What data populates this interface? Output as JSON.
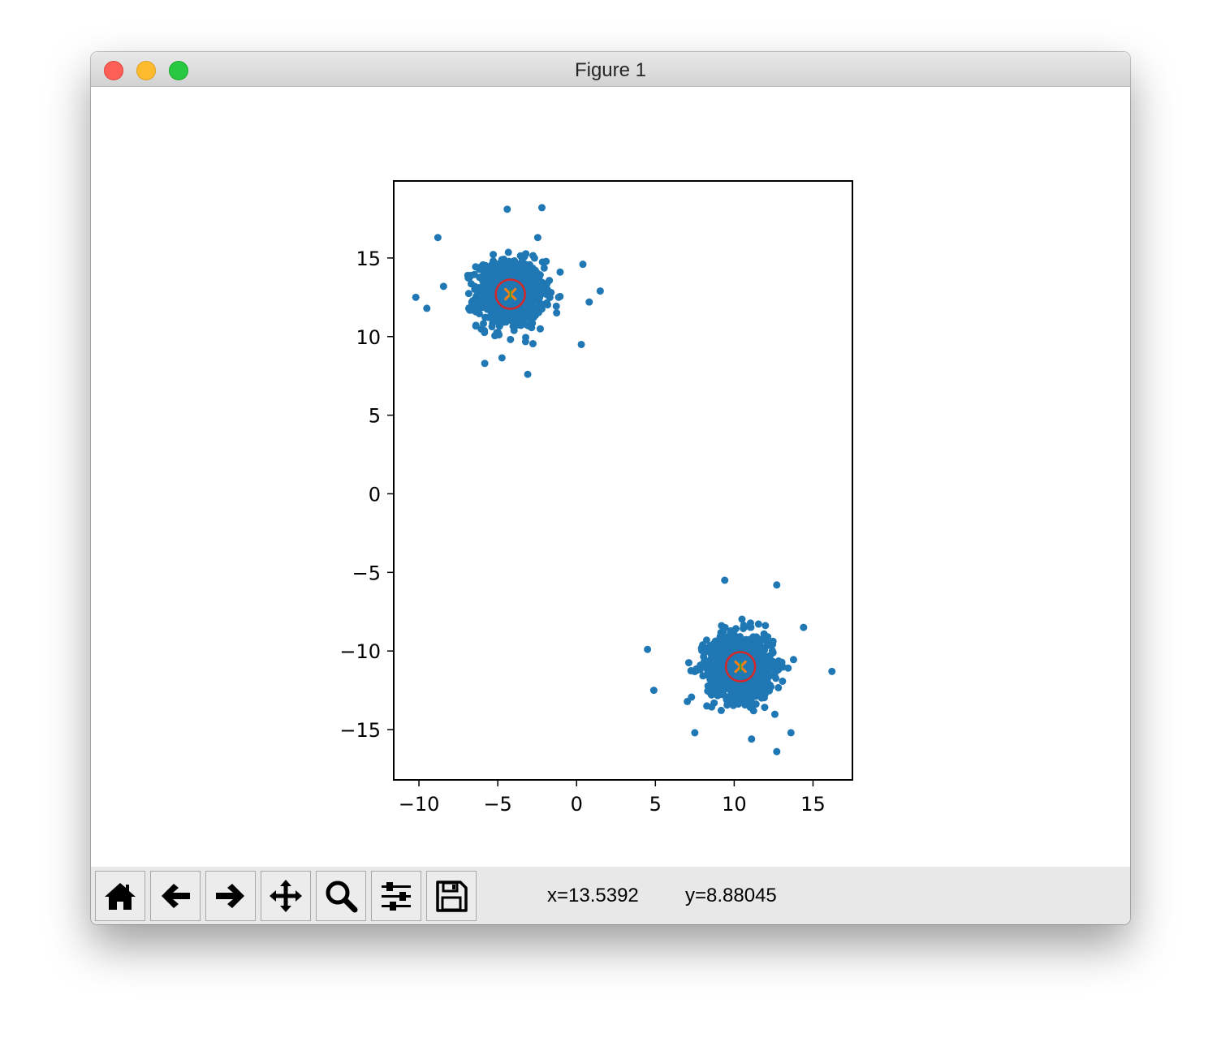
{
  "window": {
    "title": "Figure 1"
  },
  "toolbar": {
    "buttons": [
      {
        "name": "home-button",
        "icon": "home-icon"
      },
      {
        "name": "back-button",
        "icon": "arrow-left-icon"
      },
      {
        "name": "forward-button",
        "icon": "arrow-right-icon"
      },
      {
        "name": "pan-button",
        "icon": "move-icon"
      },
      {
        "name": "zoom-button",
        "icon": "magnifier-icon"
      },
      {
        "name": "configure-subplots-button",
        "icon": "sliders-icon"
      },
      {
        "name": "save-button",
        "icon": "floppy-disk-icon"
      }
    ],
    "x_readout": "x=13.5392",
    "y_readout": "y=8.88045"
  },
  "chart_data": {
    "type": "scatter",
    "xlim": [
      -11.6,
      17.5
    ],
    "ylim": [
      -18.2,
      19.9
    ],
    "xticks": [
      -10,
      -5,
      0,
      5,
      10,
      15
    ],
    "yticks": [
      15,
      10,
      5,
      0,
      -5,
      -10,
      -15
    ],
    "xtick_labels": [
      "−10",
      "−5",
      "0",
      "5",
      "10",
      "15"
    ],
    "ytick_labels": [
      "15",
      "10",
      "5",
      "0",
      "−5",
      "−10",
      "−15"
    ],
    "point_color": "#1f77b4",
    "clusters": [
      {
        "center": [
          -4.2,
          12.7
        ],
        "std": 1.05,
        "n": 900
      },
      {
        "center": [
          10.4,
          -11.0
        ],
        "std": 1.05,
        "n": 900
      }
    ],
    "outliers": [
      [
        -10.2,
        12.5
      ],
      [
        -9.5,
        11.8
      ],
      [
        -8.8,
        16.3
      ],
      [
        -2.2,
        18.2
      ],
      [
        -4.4,
        18.1
      ],
      [
        1.5,
        12.9
      ],
      [
        0.4,
        14.6
      ],
      [
        0.8,
        12.2
      ],
      [
        0.3,
        9.5
      ],
      [
        -3.1,
        7.6
      ],
      [
        9.4,
        -5.5
      ],
      [
        12.7,
        -5.8
      ],
      [
        16.2,
        -11.3
      ],
      [
        4.5,
        -9.9
      ],
      [
        4.9,
        -12.5
      ],
      [
        12.7,
        -16.4
      ],
      [
        7.5,
        -15.2
      ],
      [
        14.4,
        -8.5
      ],
      [
        11.1,
        -15.6
      ],
      [
        13.6,
        -15.2
      ]
    ],
    "centroids": [
      {
        "x": -4.2,
        "y": 12.7
      },
      {
        "x": 10.4,
        "y": -11.0
      }
    ],
    "centroid_ring_color": "#d62728",
    "centroid_cross_colors": [
      "#ff7f0e",
      "#2ca02c"
    ],
    "grid": false,
    "title": "",
    "xlabel": "",
    "ylabel": ""
  }
}
